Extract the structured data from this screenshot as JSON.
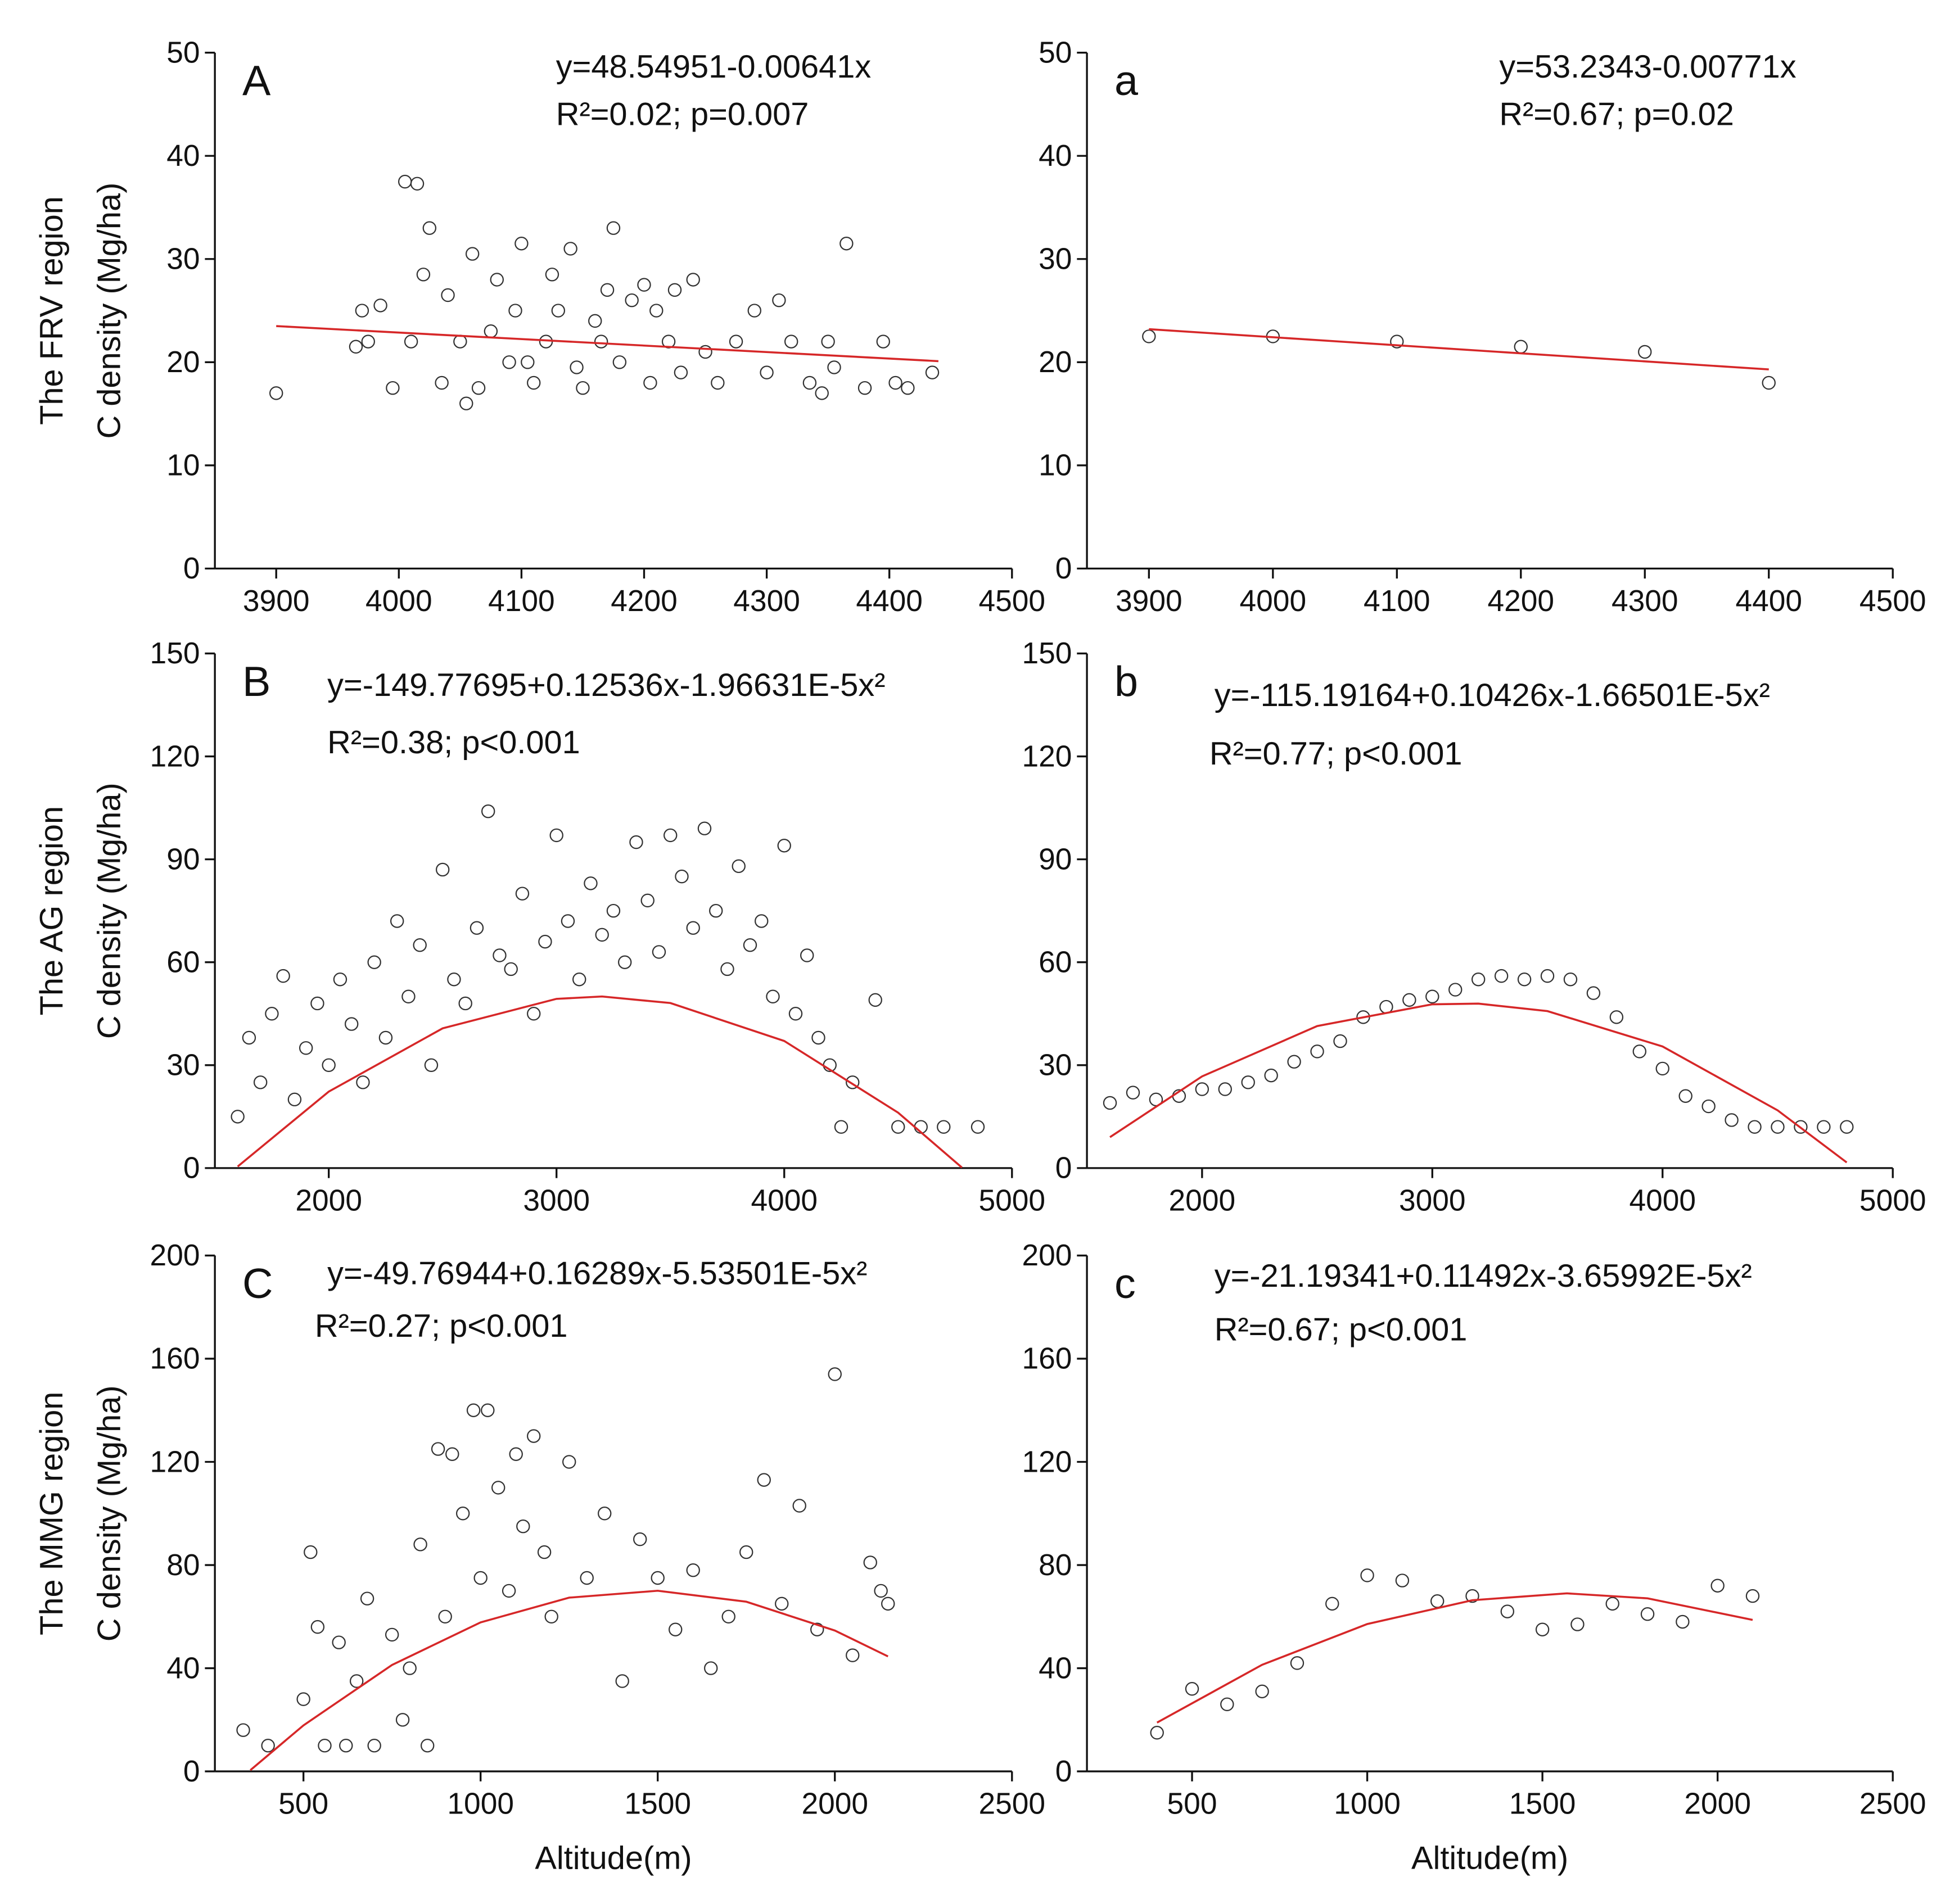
{
  "chart_data": [
    {
      "type": "scatter",
      "panel": "A",
      "equation": "y=48.54951-0.00641x",
      "stats": "R²=0.02; p=0.007",
      "ylabel": [
        "The FRV region",
        "C density (Mg/ha)"
      ],
      "xlim": [
        3850,
        4500
      ],
      "xticks": [
        3900,
        4000,
        4100,
        4200,
        4300,
        4400,
        4500
      ],
      "ylim": [
        0,
        50
      ],
      "yticks": [
        0,
        10,
        20,
        30,
        40,
        50
      ],
      "marker_color": "#333333",
      "points": {
        "x": [
          3900,
          3965,
          3970,
          3975,
          3985,
          3995,
          4005,
          4010,
          4015,
          4020,
          4025,
          4035,
          4040,
          4050,
          4055,
          4060,
          4065,
          4075,
          4080,
          4090,
          4095,
          4100,
          4105,
          4110,
          4120,
          4125,
          4130,
          4140,
          4145,
          4150,
          4160,
          4165,
          4170,
          4175,
          4180,
          4190,
          4200,
          4205,
          4210,
          4220,
          4225,
          4230,
          4240,
          4250,
          4260,
          4275,
          4290,
          4300,
          4310,
          4320,
          4335,
          4345,
          4350,
          4355,
          4365,
          4380,
          4395,
          4405,
          4415,
          4435
        ],
        "y": [
          17,
          21.5,
          25,
          22,
          25.5,
          17.5,
          37.5,
          22,
          37.3,
          28.5,
          33,
          18,
          26.5,
          22,
          16,
          30.5,
          17.5,
          23,
          28,
          20,
          25,
          31.5,
          20,
          18,
          22,
          28.5,
          25,
          31,
          19.5,
          17.5,
          24,
          22,
          27,
          33,
          20,
          26,
          27.5,
          18,
          25,
          22,
          27,
          19,
          28,
          21,
          18,
          22,
          25,
          19,
          26,
          22,
          18,
          17,
          22,
          19.5,
          31.5,
          17.5,
          22,
          18,
          17.5,
          19
        ]
      },
      "fit": {
        "color": "#d62728",
        "x": [
          3900,
          4440
        ],
        "y": [
          23.5,
          20.1
        ]
      }
    },
    {
      "type": "scatter",
      "panel": "a",
      "equation": "y=53.2343-0.00771x",
      "stats": "R²=0.67; p=0.02",
      "xlim": [
        3850,
        4500
      ],
      "xticks": [
        3900,
        4000,
        4100,
        4200,
        4300,
        4400,
        4500
      ],
      "ylim": [
        0,
        50
      ],
      "yticks": [
        0,
        10,
        20,
        30,
        40,
        50
      ],
      "marker_color": "#333333",
      "points": {
        "x": [
          3900,
          4000,
          4100,
          4200,
          4300,
          4400
        ],
        "y": [
          22.5,
          22.5,
          22,
          21.5,
          21,
          18
        ]
      },
      "fit": {
        "color": "#d62728",
        "x": [
          3900,
          4400
        ],
        "y": [
          23.2,
          19.3
        ]
      }
    },
    {
      "type": "scatter",
      "panel": "B",
      "equation": "y=-149.77695+0.12536x-1.96631E-5x²",
      "stats": "R²=0.38; p<0.001",
      "ylabel": [
        "The AG region",
        "C density (Mg/ha)"
      ],
      "xlim": [
        1500,
        5000
      ],
      "xticks": [
        2000,
        3000,
        4000,
        5000
      ],
      "ylim": [
        0,
        150
      ],
      "yticks": [
        0,
        30,
        60,
        90,
        120,
        150
      ],
      "marker_color": "#333333",
      "points": {
        "x": [
          1600,
          1650,
          1700,
          1750,
          1800,
          1850,
          1900,
          1950,
          2000,
          2050,
          2100,
          2150,
          2200,
          2250,
          2300,
          2350,
          2400,
          2450,
          2500,
          2550,
          2600,
          2650,
          2700,
          2750,
          2800,
          2850,
          2900,
          2950,
          3000,
          3050,
          3100,
          3150,
          3200,
          3250,
          3300,
          3350,
          3400,
          3450,
          3500,
          3550,
          3600,
          3650,
          3700,
          3750,
          3800,
          3850,
          3900,
          3950,
          4000,
          4050,
          4100,
          4150,
          4200,
          4250,
          4300,
          4400,
          4500,
          4600,
          4700,
          4850
        ],
        "y": [
          15,
          38,
          25,
          45,
          56,
          20,
          35,
          48,
          30,
          55,
          42,
          25,
          60,
          38,
          72,
          50,
          65,
          30,
          87,
          55,
          48,
          70,
          104,
          62,
          58,
          80,
          45,
          66,
          97,
          72,
          55,
          83,
          68,
          75,
          60,
          95,
          78,
          63,
          97,
          85,
          70,
          99,
          75,
          58,
          88,
          65,
          72,
          50,
          94,
          45,
          62,
          38,
          30,
          12,
          25,
          49,
          12,
          12,
          12,
          12
        ]
      },
      "fit": {
        "color": "#d62728",
        "x": [
          1600,
          2000,
          2500,
          3000,
          3200,
          3500,
          4000,
          4500,
          4780
        ],
        "y": [
          0.46,
          22.29,
          40.73,
          49.33,
          50.02,
          48.11,
          37.05,
          16.16,
          0.17
        ]
      }
    },
    {
      "type": "scatter",
      "panel": "b",
      "equation": "y=-115.19164+0.10426x-1.66501E-5x²",
      "stats": "R²=0.77; p<0.001",
      "xlim": [
        1500,
        5000
      ],
      "xticks": [
        2000,
        3000,
        4000,
        5000
      ],
      "ylim": [
        0,
        150
      ],
      "yticks": [
        0,
        30,
        60,
        90,
        120,
        150
      ],
      "marker_color": "#333333",
      "points": {
        "x": [
          1600,
          1700,
          1800,
          1900,
          2000,
          2100,
          2200,
          2300,
          2400,
          2500,
          2600,
          2700,
          2800,
          2900,
          3000,
          3100,
          3200,
          3300,
          3400,
          3500,
          3600,
          3700,
          3800,
          3900,
          4000,
          4100,
          4200,
          4300,
          4400,
          4500,
          4600,
          4700,
          4800
        ],
        "y": [
          19,
          22,
          20,
          21,
          23,
          23,
          25,
          27,
          31,
          34,
          37,
          44,
          47,
          49,
          50,
          52,
          55,
          56,
          55,
          56,
          55,
          51,
          44,
          34,
          29,
          21,
          18,
          14,
          12,
          12,
          12,
          12,
          12
        ]
      },
      "fit": {
        "color": "#d62728",
        "x": [
          1600,
          2000,
          2500,
          3000,
          3200,
          3500,
          4000,
          4500,
          4800
        ],
        "y": [
          9.01,
          26.73,
          41.4,
          47.74,
          47.94,
          45.76,
          35.45,
          16.82,
          1.64
        ]
      }
    },
    {
      "type": "scatter",
      "panel": "C",
      "equation": "y=-49.76944+0.16289x-5.53501E-5x²",
      "stats": "R²=0.27; p<0.001",
      "ylabel": [
        "The MMG region",
        "C density (Mg/ha)"
      ],
      "xlabel": "Altitude(m)",
      "xlim": [
        250,
        2500
      ],
      "xticks": [
        500,
        1000,
        1500,
        2000,
        2500
      ],
      "ylim": [
        0,
        200
      ],
      "yticks": [
        0,
        40,
        80,
        120,
        160,
        200
      ],
      "marker_color": "#333333",
      "points": {
        "x": [
          330,
          400,
          500,
          520,
          540,
          560,
          600,
          620,
          650,
          680,
          700,
          750,
          780,
          800,
          830,
          850,
          880,
          900,
          920,
          950,
          980,
          1000,
          1020,
          1050,
          1080,
          1100,
          1120,
          1150,
          1180,
          1200,
          1250,
          1300,
          1350,
          1400,
          1450,
          1500,
          1550,
          1600,
          1650,
          1700,
          1750,
          1800,
          1850,
          1900,
          1950,
          2000,
          2050,
          2100,
          2130,
          2150
        ],
        "y": [
          16,
          10,
          28,
          85,
          56,
          10,
          50,
          10,
          35,
          67,
          10,
          53,
          20,
          40,
          88,
          10,
          125,
          60,
          123,
          100,
          140,
          75,
          140,
          110,
          70,
          123,
          95,
          130,
          85,
          60,
          120,
          75,
          100,
          35,
          90,
          75,
          55,
          78,
          40,
          60,
          85,
          113,
          65,
          103,
          55,
          154,
          45,
          81,
          70,
          65
        ]
      },
      "fit": {
        "color": "#d62728",
        "x": [
          350,
          500,
          750,
          1000,
          1250,
          1500,
          1750,
          2000,
          2150
        ],
        "y": [
          0.46,
          17.84,
          41.27,
          57.77,
          67.36,
          70.03,
          65.78,
          54.61,
          44.58
        ]
      }
    },
    {
      "type": "scatter",
      "panel": "c",
      "equation": "y=-21.19341+0.11492x-3.65992E-5x²",
      "stats": "R²=0.67; p<0.001",
      "xlabel": "Altitude(m)",
      "xlim": [
        200,
        2500
      ],
      "xticks": [
        500,
        1000,
        1500,
        2000,
        2500
      ],
      "ylim": [
        0,
        200
      ],
      "yticks": [
        0,
        40,
        80,
        120,
        160,
        200
      ],
      "marker_color": "#333333",
      "points": {
        "x": [
          400,
          500,
          600,
          700,
          800,
          900,
          1000,
          1100,
          1200,
          1300,
          1400,
          1500,
          1600,
          1700,
          1800,
          1900,
          2000,
          2100
        ],
        "y": [
          15,
          32,
          26,
          31,
          42,
          65,
          76,
          74,
          66,
          68,
          62,
          55,
          57,
          65,
          61,
          58,
          72,
          68
        ]
      },
      "fit": {
        "color": "#d62728",
        "x": [
          400,
          700,
          1000,
          1300,
          1570,
          1800,
          2100
        ],
        "y": [
          18.92,
          41.32,
          57.13,
          66.36,
          69.02,
          67.09,
          58.74
        ]
      }
    }
  ]
}
